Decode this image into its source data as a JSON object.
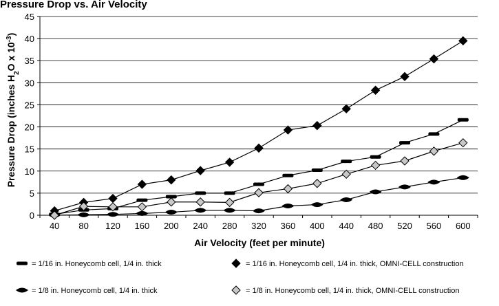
{
  "figure": {
    "title_visible": "Pressure Drop vs. Air Velocity"
  },
  "chart_data": {
    "type": "line",
    "title": "Pressure Drop vs. Air Velocity",
    "xlabel": "Air Velocity (feet per minute)",
    "ylabel_parts": [
      "Pressure Drop (inches H",
      "2",
      "O x 10",
      "-3",
      ")"
    ],
    "x": [
      40,
      80,
      120,
      160,
      200,
      240,
      280,
      320,
      360,
      400,
      440,
      480,
      520,
      560,
      600
    ],
    "ylim": [
      0,
      45
    ],
    "yticks": [
      0,
      5,
      10,
      15,
      20,
      25,
      30,
      35,
      40,
      45
    ],
    "grid": "horizontal",
    "legend_position": "bottom",
    "series": [
      {
        "key": "s1",
        "marker": "dash",
        "fill": "#000000",
        "values": [
          0.2,
          1.2,
          1.5,
          3.4,
          4.2,
          5.0,
          5.0,
          7.0,
          9.0,
          10.2,
          12.2,
          13.2,
          16.4,
          18.4,
          21.6
        ]
      },
      {
        "key": "s2",
        "marker": "diamond",
        "fill": "#000000",
        "values": [
          1.0,
          2.9,
          3.8,
          7.0,
          8.0,
          10.1,
          12.0,
          15.2,
          19.3,
          20.3,
          24.1,
          28.3,
          31.4,
          35.4,
          39.5
        ]
      },
      {
        "key": "s3",
        "marker": "lens",
        "fill": "#000000",
        "values": [
          0.0,
          0.1,
          0.2,
          0.4,
          0.7,
          1.1,
          1.1,
          1.0,
          2.1,
          2.4,
          3.5,
          5.3,
          6.4,
          7.5,
          8.5
        ]
      },
      {
        "key": "s4",
        "marker": "diamond",
        "fill": "#c8c8c8",
        "values": [
          0.0,
          2.0,
          1.9,
          1.9,
          3.0,
          3.0,
          2.9,
          5.1,
          6.0,
          7.2,
          9.3,
          11.3,
          12.3,
          14.5,
          16.4
        ]
      }
    ],
    "legend": [
      {
        "key": "s1",
        "label": "= 1/16 in. Honeycomb cell, 1/4 in. thick"
      },
      {
        "key": "s2",
        "label": "= 1/16 in. Honeycomb cell, 1/4 in. thick, OMNI-CELL construction"
      },
      {
        "key": "s3",
        "label": "= 1/8 in. Honeycomb cell, 1/4 in. thick"
      },
      {
        "key": "s4",
        "label": "= 1/8 in. Honeycomb cell, 1/4 in. thick, OMNI-CELL construction"
      }
    ]
  }
}
